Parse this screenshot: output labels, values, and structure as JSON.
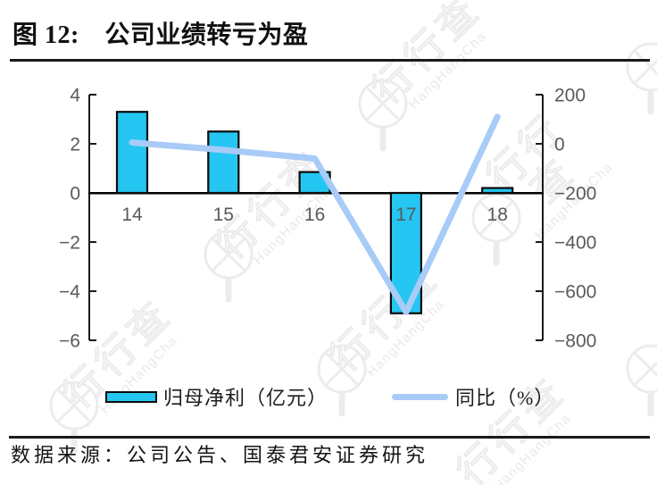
{
  "title": "图 12:　公司业绩转亏为盈",
  "source": "数据来源：公司公告、国泰君安证券研究",
  "watermark": {
    "brand": "行行查",
    "brand_latin": "HangHangCha"
  },
  "legend": {
    "bar": {
      "label": "归母净利（亿元）"
    },
    "line": {
      "label": "同比（%）"
    }
  },
  "colors": {
    "bar_fill": "#25C6F1",
    "bar_stroke": "#0b0b0b",
    "line": "#A8CBF8",
    "axis": "#1a1a1a",
    "tick_text": "#5a5a5a"
  },
  "chart_data": {
    "type": "bar+line",
    "categories": [
      "14",
      "15",
      "16",
      "17",
      "18"
    ],
    "series": [
      {
        "name": "归母净利（亿元）",
        "type": "bar",
        "axis": "left",
        "color": "#25C6F1",
        "values": [
          3.3,
          2.5,
          0.85,
          -4.9,
          0.2
        ]
      },
      {
        "name": "同比（%）",
        "type": "line",
        "axis": "right",
        "color": "#A8CBF8",
        "values": [
          5,
          -25,
          -60,
          -685,
          110
        ]
      }
    ],
    "left_axis": {
      "min": -6,
      "max": 4,
      "tick_values": [
        4,
        2,
        0,
        -2,
        -4,
        -6
      ],
      "tick_labels": [
        "4",
        "2",
        "0",
        "−2",
        "−4",
        "−6"
      ]
    },
    "right_axis": {
      "min": -800,
      "max": 200,
      "tick_values": [
        200,
        0,
        -200,
        -400,
        -600,
        -800
      ],
      "tick_labels": [
        "200",
        "0",
        "−200",
        "−400",
        "−600",
        "−800"
      ]
    },
    "grid": false,
    "legend_position": "bottom"
  }
}
